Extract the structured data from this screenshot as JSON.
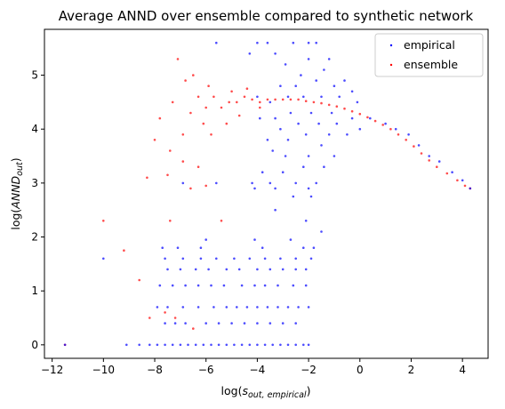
{
  "chart_data": {
    "type": "scatter",
    "title": "Average ANND over ensemble compared to synthetic network",
    "xlabel": "log(s_out,empirical)",
    "ylabel": "log(ANND_out)",
    "xlim": [
      -12.3,
      5.0
    ],
    "ylim": [
      -0.25,
      5.85
    ],
    "xticks": [
      -12,
      -10,
      -8,
      -6,
      -4,
      -2,
      0,
      2,
      4
    ],
    "yticks": [
      0,
      1,
      2,
      3,
      4,
      5
    ],
    "legend_position": "top-right",
    "grid": false,
    "series": [
      {
        "name": "empirical",
        "color": "#0000ff",
        "points": [
          [
            -11.5,
            0.0
          ],
          [
            -9.1,
            0.0
          ],
          [
            -8.6,
            0.0
          ],
          [
            -8.2,
            0.0
          ],
          [
            -7.9,
            0.0
          ],
          [
            -7.6,
            0.0
          ],
          [
            -7.3,
            0.0
          ],
          [
            -7.0,
            0.0
          ],
          [
            -6.7,
            0.0
          ],
          [
            -6.4,
            0.0
          ],
          [
            -6.1,
            0.0
          ],
          [
            -5.8,
            0.0
          ],
          [
            -5.5,
            0.0
          ],
          [
            -5.2,
            0.0
          ],
          [
            -4.9,
            0.0
          ],
          [
            -4.6,
            0.0
          ],
          [
            -4.3,
            0.0
          ],
          [
            -4.0,
            0.0
          ],
          [
            -3.7,
            0.0
          ],
          [
            -3.4,
            0.0
          ],
          [
            -3.1,
            0.0
          ],
          [
            -2.8,
            0.0
          ],
          [
            -2.5,
            0.0
          ],
          [
            -2.2,
            0.0
          ],
          [
            -2.0,
            0.0
          ],
          [
            -7.6,
            0.4
          ],
          [
            -7.2,
            0.4
          ],
          [
            -6.8,
            0.4
          ],
          [
            -6.0,
            0.4
          ],
          [
            -5.5,
            0.4
          ],
          [
            -5.0,
            0.4
          ],
          [
            -4.5,
            0.4
          ],
          [
            -4.0,
            0.4
          ],
          [
            -3.5,
            0.4
          ],
          [
            -3.0,
            0.4
          ],
          [
            -2.5,
            0.4
          ],
          [
            -7.9,
            0.7
          ],
          [
            -7.5,
            0.7
          ],
          [
            -6.9,
            0.7
          ],
          [
            -6.3,
            0.7
          ],
          [
            -5.7,
            0.7
          ],
          [
            -5.2,
            0.7
          ],
          [
            -4.8,
            0.7
          ],
          [
            -4.4,
            0.7
          ],
          [
            -4.0,
            0.7
          ],
          [
            -3.6,
            0.7
          ],
          [
            -3.2,
            0.7
          ],
          [
            -2.8,
            0.7
          ],
          [
            -2.4,
            0.7
          ],
          [
            -2.0,
            0.7
          ],
          [
            -7.8,
            1.1
          ],
          [
            -7.3,
            1.1
          ],
          [
            -6.8,
            1.1
          ],
          [
            -6.3,
            1.1
          ],
          [
            -5.8,
            1.1
          ],
          [
            -5.3,
            1.1
          ],
          [
            -4.6,
            1.1
          ],
          [
            -4.1,
            1.1
          ],
          [
            -3.7,
            1.1
          ],
          [
            -3.2,
            1.1
          ],
          [
            -2.6,
            1.1
          ],
          [
            -2.1,
            1.1
          ],
          [
            -7.5,
            1.4
          ],
          [
            -7.0,
            1.4
          ],
          [
            -6.4,
            1.4
          ],
          [
            -5.9,
            1.4
          ],
          [
            -5.2,
            1.4
          ],
          [
            -4.7,
            1.4
          ],
          [
            -4.0,
            1.4
          ],
          [
            -3.5,
            1.4
          ],
          [
            -3.0,
            1.4
          ],
          [
            -2.5,
            1.4
          ],
          [
            -2.1,
            1.4
          ],
          [
            -7.6,
            1.6
          ],
          [
            -6.9,
            1.6
          ],
          [
            -6.2,
            1.6
          ],
          [
            -5.6,
            1.6
          ],
          [
            -4.9,
            1.6
          ],
          [
            -4.3,
            1.6
          ],
          [
            -3.7,
            1.6
          ],
          [
            -3.1,
            1.6
          ],
          [
            -2.5,
            1.6
          ],
          [
            -1.9,
            1.6
          ],
          [
            -10.0,
            1.6
          ],
          [
            -7.7,
            1.8
          ],
          [
            -7.1,
            1.8
          ],
          [
            -6.2,
            1.8
          ],
          [
            -3.8,
            1.8
          ],
          [
            -2.2,
            1.8
          ],
          [
            -1.8,
            1.8
          ],
          [
            -6.0,
            1.95
          ],
          [
            -4.1,
            1.95
          ],
          [
            -2.7,
            1.95
          ],
          [
            -1.5,
            2.1
          ],
          [
            -2.1,
            2.3
          ],
          [
            -3.3,
            2.5
          ],
          [
            -2.6,
            2.75
          ],
          [
            -1.9,
            2.75
          ],
          [
            -6.9,
            3.0
          ],
          [
            -5.6,
            3.0
          ],
          [
            -4.2,
            3.0
          ],
          [
            -3.5,
            3.0
          ],
          [
            -2.5,
            3.0
          ],
          [
            -1.7,
            3.0
          ],
          [
            -4.1,
            2.9
          ],
          [
            -3.3,
            2.9
          ],
          [
            -2.0,
            2.9
          ],
          [
            -3.8,
            3.2
          ],
          [
            -3.0,
            3.2
          ],
          [
            -2.2,
            3.3
          ],
          [
            -1.4,
            3.3
          ],
          [
            -2.9,
            3.5
          ],
          [
            -2.0,
            3.5
          ],
          [
            -1.0,
            3.5
          ],
          [
            -3.4,
            3.6
          ],
          [
            -1.5,
            3.7
          ],
          [
            -3.6,
            3.8
          ],
          [
            -2.8,
            3.8
          ],
          [
            -2.1,
            3.9
          ],
          [
            -1.2,
            3.9
          ],
          [
            -0.5,
            3.9
          ],
          [
            -3.1,
            4.0
          ],
          [
            -2.4,
            4.1
          ],
          [
            -1.6,
            4.1
          ],
          [
            -0.9,
            4.1
          ],
          [
            0.0,
            4.0
          ],
          [
            -3.9,
            4.2
          ],
          [
            -3.3,
            4.2
          ],
          [
            -2.7,
            4.3
          ],
          [
            -1.9,
            4.3
          ],
          [
            -1.1,
            4.3
          ],
          [
            -0.3,
            4.2
          ],
          [
            0.4,
            4.2
          ],
          [
            1.0,
            4.1
          ],
          [
            -3.5,
            4.5
          ],
          [
            -2.8,
            4.6
          ],
          [
            -2.2,
            4.6
          ],
          [
            -1.5,
            4.6
          ],
          [
            -0.8,
            4.6
          ],
          [
            -0.1,
            4.5
          ],
          [
            -4.0,
            4.6
          ],
          [
            -3.1,
            4.8
          ],
          [
            -2.5,
            4.8
          ],
          [
            -1.7,
            4.9
          ],
          [
            -1.0,
            4.8
          ],
          [
            -0.3,
            4.7
          ],
          [
            -2.3,
            5.0
          ],
          [
            -1.4,
            5.1
          ],
          [
            -0.6,
            4.9
          ],
          [
            -2.9,
            5.2
          ],
          [
            -2.0,
            5.3
          ],
          [
            -1.2,
            5.3
          ],
          [
            -4.3,
            5.4
          ],
          [
            -3.3,
            5.4
          ],
          [
            -2.6,
            5.6
          ],
          [
            -2.0,
            5.6
          ],
          [
            -1.7,
            5.6
          ],
          [
            -3.6,
            5.6
          ],
          [
            -4.0,
            5.6
          ],
          [
            -5.6,
            5.6
          ],
          [
            1.4,
            4.0
          ],
          [
            1.9,
            3.9
          ],
          [
            2.3,
            3.7
          ],
          [
            2.7,
            3.5
          ],
          [
            3.1,
            3.4
          ],
          [
            3.6,
            3.2
          ],
          [
            4.0,
            3.05
          ],
          [
            4.3,
            2.9
          ]
        ]
      },
      {
        "name": "ensemble",
        "color": "#ff0000",
        "points": [
          [
            -11.5,
            0.0
          ],
          [
            -10.0,
            2.3
          ],
          [
            -9.2,
            1.75
          ],
          [
            -8.6,
            1.2
          ],
          [
            -8.2,
            0.5
          ],
          [
            -7.6,
            0.6
          ],
          [
            -7.2,
            0.5
          ],
          [
            -6.5,
            0.3
          ],
          [
            -8.3,
            3.1
          ],
          [
            -7.5,
            3.15
          ],
          [
            -8.0,
            3.8
          ],
          [
            -7.4,
            3.6
          ],
          [
            -6.9,
            3.4
          ],
          [
            -6.6,
            2.9
          ],
          [
            -6.3,
            3.3
          ],
          [
            -5.8,
            3.9
          ],
          [
            -7.8,
            4.2
          ],
          [
            -7.3,
            4.5
          ],
          [
            -7.1,
            5.3
          ],
          [
            -6.8,
            4.9
          ],
          [
            -6.6,
            4.3
          ],
          [
            -6.3,
            4.6
          ],
          [
            -6.0,
            4.4
          ],
          [
            -5.7,
            4.6
          ],
          [
            -5.4,
            4.4
          ],
          [
            -5.1,
            4.5
          ],
          [
            -4.8,
            4.5
          ],
          [
            -4.5,
            4.6
          ],
          [
            -4.2,
            4.55
          ],
          [
            -3.9,
            4.5
          ],
          [
            -3.6,
            4.55
          ],
          [
            -3.3,
            4.55
          ],
          [
            -3.0,
            4.55
          ],
          [
            -2.7,
            4.55
          ],
          [
            -2.4,
            4.55
          ],
          [
            -2.1,
            4.52
          ],
          [
            -1.8,
            4.5
          ],
          [
            -1.5,
            4.48
          ],
          [
            -1.2,
            4.45
          ],
          [
            -0.9,
            4.42
          ],
          [
            -0.6,
            4.38
          ],
          [
            -0.3,
            4.33
          ],
          [
            0.0,
            4.28
          ],
          [
            0.3,
            4.22
          ],
          [
            0.6,
            4.15
          ],
          [
            0.9,
            4.08
          ],
          [
            1.2,
            4.0
          ],
          [
            1.5,
            3.9
          ],
          [
            1.8,
            3.8
          ],
          [
            2.1,
            3.68
          ],
          [
            2.4,
            3.55
          ],
          [
            2.7,
            3.42
          ],
          [
            3.0,
            3.3
          ],
          [
            3.4,
            3.18
          ],
          [
            3.8,
            3.05
          ],
          [
            4.1,
            2.95
          ],
          [
            4.3,
            2.9
          ],
          [
            -6.5,
            5.0
          ],
          [
            -5.9,
            4.8
          ],
          [
            -5.0,
            4.7
          ],
          [
            -4.4,
            4.75
          ],
          [
            -3.9,
            4.4
          ],
          [
            -5.2,
            4.1
          ],
          [
            -4.7,
            4.25
          ],
          [
            -6.1,
            4.1
          ],
          [
            -6.9,
            3.9
          ],
          [
            -5.4,
            2.3
          ],
          [
            -7.4,
            2.3
          ],
          [
            -6.0,
            2.95
          ]
        ]
      }
    ]
  }
}
